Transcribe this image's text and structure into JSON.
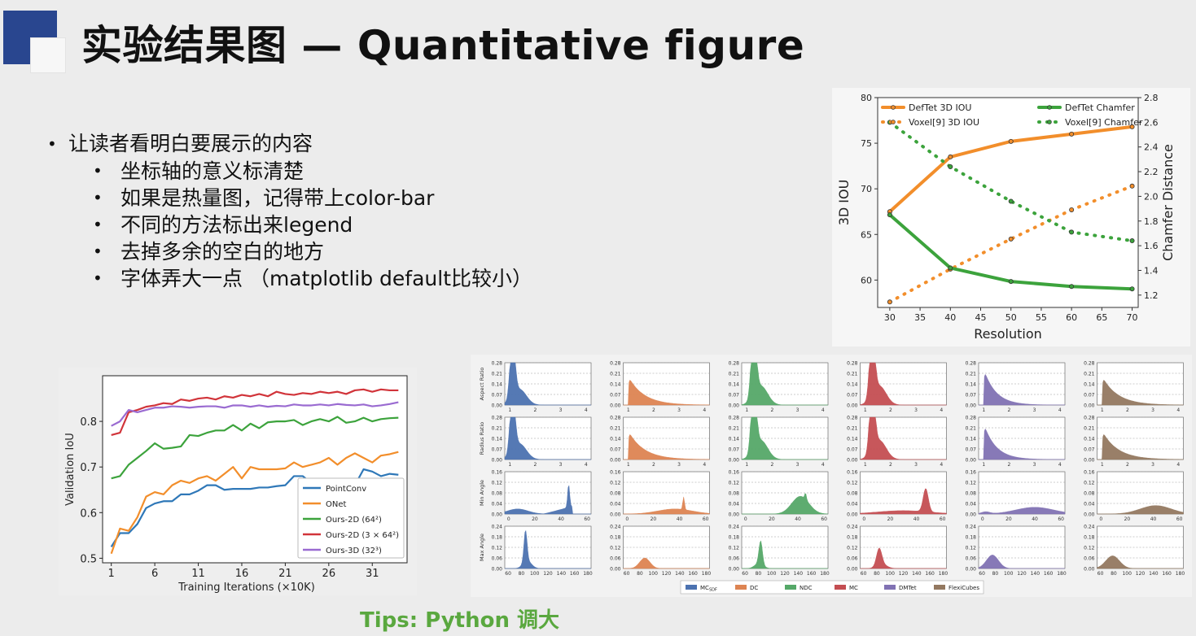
{
  "header": {
    "title": "实验结果图 — Quantitative figure"
  },
  "bullets": {
    "main": "让读者看明白要展示的内容",
    "subs": [
      "坐标轴的意义标清楚",
      "如果是热量图，记得带上color-bar",
      "不同的方法标出来legend",
      "去掉多余的空白的地方",
      "字体弄大一点 （matplotlib default比较小）"
    ]
  },
  "tips": "Tips: Python 调大",
  "colors": {
    "accent_dark": "#29468f",
    "tips_green": "#5aa83f",
    "orange": "#f28e2b",
    "green": "#3ca33c"
  },
  "chart_data": [
    {
      "type": "line",
      "xlabel": "Resolution",
      "ylabel": "3D IOU",
      "y2label": "Chamfer Distance",
      "xlim": [
        28,
        71
      ],
      "ylim": [
        57,
        80
      ],
      "y2lim": [
        1.1,
        2.8
      ],
      "xticks": [
        30,
        35,
        40,
        45,
        50,
        55,
        60,
        65,
        70
      ],
      "yticks": [
        60,
        65,
        70,
        75,
        80
      ],
      "y2ticks": [
        1.2,
        1.4,
        1.6,
        1.8,
        2.0,
        2.2,
        2.4,
        2.6,
        2.8
      ],
      "x": [
        30,
        40,
        50,
        60,
        70
      ],
      "legend_left": "top-left",
      "legend_right": "top-right",
      "series": [
        {
          "name": "DefTet 3D IOU",
          "axis": "left",
          "style": "solid",
          "color": "#f28e2b",
          "values": [
            67.5,
            73.5,
            75.2,
            76.0,
            76.8
          ]
        },
        {
          "name": "Voxel[9] 3D IOU",
          "axis": "left",
          "style": "dotted",
          "color": "#f28e2b",
          "values": [
            57.6,
            61.2,
            64.5,
            67.7,
            70.3
          ]
        },
        {
          "name": "DefTet Chamfer",
          "axis": "right",
          "style": "solid",
          "color": "#3ca33c",
          "values": [
            1.85,
            1.42,
            1.31,
            1.27,
            1.25
          ]
        },
        {
          "name": "Voxel[9] Chamfer",
          "axis": "right",
          "style": "dotted",
          "color": "#3ca33c",
          "values": [
            2.6,
            2.24,
            1.96,
            1.71,
            1.64
          ]
        }
      ]
    },
    {
      "type": "line",
      "xlabel": "Training Iterations (×10K)",
      "ylabel": "Validation IoU",
      "xlim": [
        0,
        35
      ],
      "ylim": [
        0.49,
        0.9
      ],
      "xticks": [
        1,
        6,
        11,
        16,
        21,
        26,
        31
      ],
      "yticks": [
        0.5,
        0.6,
        0.7,
        0.8
      ],
      "legend": "bottom-right",
      "series": [
        {
          "name": "PointConv",
          "color": "#2f78b8",
          "values": [
            0.525,
            0.555,
            0.555,
            0.575,
            0.61,
            0.62,
            0.625,
            0.625,
            0.64,
            0.64,
            0.648,
            0.66,
            0.66,
            0.65,
            0.652,
            0.652,
            0.652,
            0.655,
            0.655,
            0.658,
            0.66,
            0.68,
            0.68,
            0.665,
            0.667,
            0.667,
            0.665,
            0.66,
            0.66,
            0.695,
            0.69,
            0.68,
            0.685,
            0.683
          ]
        },
        {
          "name": "ONet",
          "color": "#f28e2b",
          "values": [
            0.51,
            0.565,
            0.56,
            0.59,
            0.635,
            0.645,
            0.64,
            0.66,
            0.67,
            0.665,
            0.675,
            0.68,
            0.67,
            0.685,
            0.7,
            0.675,
            0.7,
            0.695,
            0.695,
            0.695,
            0.697,
            0.71,
            0.7,
            0.705,
            0.71,
            0.72,
            0.705,
            0.72,
            0.73,
            0.72,
            0.71,
            0.725,
            0.728,
            0.733
          ]
        },
        {
          "name": "Ours-2D (64²)",
          "color": "#3ca33c",
          "values": [
            0.675,
            0.68,
            0.705,
            0.72,
            0.735,
            0.752,
            0.74,
            0.742,
            0.745,
            0.77,
            0.768,
            0.775,
            0.78,
            0.78,
            0.792,
            0.78,
            0.795,
            0.785,
            0.798,
            0.8,
            0.8,
            0.803,
            0.792,
            0.8,
            0.805,
            0.8,
            0.81,
            0.797,
            0.8,
            0.808,
            0.8,
            0.805,
            0.807,
            0.808
          ]
        },
        {
          "name": "Ours-2D (3 × 64²)",
          "color": "#d1343a",
          "values": [
            0.77,
            0.775,
            0.82,
            0.825,
            0.832,
            0.835,
            0.84,
            0.838,
            0.848,
            0.845,
            0.85,
            0.852,
            0.848,
            0.855,
            0.852,
            0.858,
            0.855,
            0.86,
            0.855,
            0.865,
            0.86,
            0.858,
            0.862,
            0.86,
            0.865,
            0.862,
            0.865,
            0.86,
            0.868,
            0.87,
            0.865,
            0.87,
            0.868,
            0.868
          ]
        },
        {
          "name": "Ours-3D (32³)",
          "color": "#9a6bd1",
          "values": [
            0.79,
            0.8,
            0.825,
            0.82,
            0.825,
            0.83,
            0.83,
            0.833,
            0.832,
            0.83,
            0.832,
            0.833,
            0.833,
            0.83,
            0.835,
            0.835,
            0.832,
            0.835,
            0.832,
            0.834,
            0.833,
            0.837,
            0.835,
            0.835,
            0.837,
            0.835,
            0.838,
            0.836,
            0.835,
            0.837,
            0.833,
            0.835,
            0.838,
            0.842
          ]
        }
      ]
    },
    {
      "type": "bar",
      "layout": "histogram-grid",
      "rows": [
        {
          "ylabel": "Aspect Ratio",
          "yticks": [
            "0.00",
            "0.07",
            "0.14",
            "0.21",
            "0.28"
          ],
          "ymax": 0.28,
          "xticks": [
            "1",
            "2",
            "3",
            "4"
          ],
          "xmin": 0.8,
          "xmax": 4.2
        },
        {
          "ylabel": "Radius Ratio",
          "yticks": [
            "0.00",
            "0.07",
            "0.14",
            "0.21",
            "0.28"
          ],
          "ymax": 0.28,
          "xticks": [
            "1",
            "2",
            "3",
            "4"
          ],
          "xmin": 0.8,
          "xmax": 4.2
        },
        {
          "ylabel": "Min Angle",
          "yticks": [
            "0.00",
            "0.04",
            "0.08",
            "0.12",
            "0.16"
          ],
          "ymax": 0.16,
          "xticks": [
            "0",
            "20",
            "40",
            "60"
          ],
          "xmin": -3,
          "xmax": 63
        },
        {
          "ylabel": "Max Angle",
          "yticks": [
            "0.00",
            "0.06",
            "0.12",
            "0.18",
            "0.24"
          ],
          "ymax": 0.24,
          "xticks": [
            "60",
            "80",
            "100",
            "120",
            "140",
            "160",
            "180"
          ],
          "xmin": 55,
          "xmax": 185
        }
      ],
      "methods": [
        {
          "name": "MC",
          "sub": "SDF",
          "color": "#4c72b0"
        },
        {
          "name": "DC",
          "sub": "",
          "color": "#dd8452"
        },
        {
          "name": "NDC",
          "sub": "",
          "color": "#55a868"
        },
        {
          "name": "MC",
          "sub": "",
          "color": "#c44e52"
        },
        {
          "name": "DMTet",
          "sub": "",
          "color": "#8172b3"
        },
        {
          "name": "FlexiCubes",
          "sub": "",
          "color": "#937860"
        }
      ],
      "legend": "bottom"
    }
  ]
}
